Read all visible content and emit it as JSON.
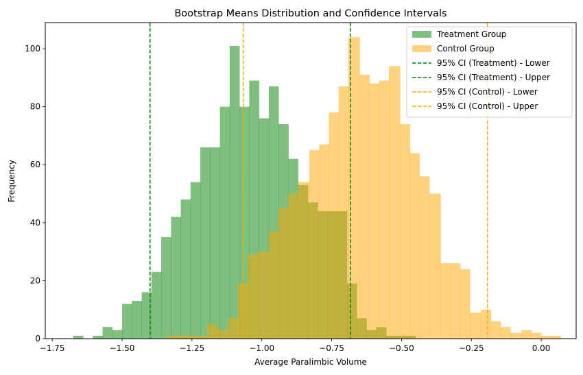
{
  "chart_data": {
    "type": "histogram",
    "title": "Bootstrap Means Distribution and Confidence Intervals",
    "xlabel": "Average Paralimbic Volume",
    "ylabel": "Frequency",
    "xlim": [
      -1.775,
      0.125
    ],
    "ylim": [
      0,
      109
    ],
    "xticks": [
      -1.75,
      -1.5,
      -1.25,
      -1.0,
      -0.75,
      -0.5,
      -0.25,
      0.0
    ],
    "xtick_labels": [
      "−1.75",
      "−1.50",
      "−1.25",
      "−1.00",
      "−0.75",
      "−0.50",
      "−0.25",
      "0.00"
    ],
    "yticks": [
      0,
      20,
      40,
      60,
      80,
      100
    ],
    "ytick_labels": [
      "0",
      "20",
      "40",
      "60",
      "80",
      "100"
    ],
    "grid": false,
    "legend_position": "top-right",
    "series": [
      {
        "name": "Treatment Group",
        "color": "#008000",
        "opacity": 0.5,
        "bins": [
          [
            -1.675,
            -1.64,
            1
          ],
          [
            -1.64,
            -1.605,
            0
          ],
          [
            -1.605,
            -1.57,
            1
          ],
          [
            -1.57,
            -1.535,
            4
          ],
          [
            -1.535,
            -1.5,
            3
          ],
          [
            -1.5,
            -1.465,
            12
          ],
          [
            -1.465,
            -1.43,
            13
          ],
          [
            -1.43,
            -1.395,
            16
          ],
          [
            -1.395,
            -1.36,
            23
          ],
          [
            -1.36,
            -1.325,
            35
          ],
          [
            -1.325,
            -1.29,
            42
          ],
          [
            -1.29,
            -1.255,
            48
          ],
          [
            -1.255,
            -1.22,
            54
          ],
          [
            -1.22,
            -1.185,
            66
          ],
          [
            -1.185,
            -1.15,
            66
          ],
          [
            -1.15,
            -1.115,
            80
          ],
          [
            -1.115,
            -1.08,
            101
          ],
          [
            -1.08,
            -1.045,
            80
          ],
          [
            -1.045,
            -1.01,
            89
          ],
          [
            -1.01,
            -0.975,
            76
          ],
          [
            -0.975,
            -0.94,
            87
          ],
          [
            -0.94,
            -0.905,
            74
          ],
          [
            -0.905,
            -0.87,
            62
          ],
          [
            -0.87,
            -0.835,
            53
          ],
          [
            -0.835,
            -0.8,
            47
          ],
          [
            -0.8,
            -0.765,
            44
          ],
          [
            -0.765,
            -0.73,
            44
          ],
          [
            -0.73,
            -0.695,
            44
          ],
          [
            -0.695,
            -0.66,
            19
          ],
          [
            -0.66,
            -0.625,
            7
          ],
          [
            -0.625,
            -0.59,
            3
          ],
          [
            -0.59,
            -0.555,
            4
          ],
          [
            -0.555,
            -0.52,
            1
          ],
          [
            -0.52,
            -0.485,
            1
          ],
          [
            -0.485,
            -0.45,
            1
          ]
        ]
      },
      {
        "name": "Control Group",
        "color": "#ffa500",
        "opacity": 0.5,
        "bins": [
          [
            -1.415,
            -1.375,
            0
          ],
          [
            -1.375,
            -1.34,
            0
          ],
          [
            -1.34,
            -1.305,
            1
          ],
          [
            -1.305,
            -1.265,
            1
          ],
          [
            -1.265,
            -1.23,
            1
          ],
          [
            -1.23,
            -1.195,
            1
          ],
          [
            -1.195,
            -1.16,
            5
          ],
          [
            -1.16,
            -1.12,
            3
          ],
          [
            -1.12,
            -1.085,
            7
          ],
          [
            -1.085,
            -1.05,
            19
          ],
          [
            -1.05,
            -1.015,
            29
          ],
          [
            -1.015,
            -0.975,
            30
          ],
          [
            -0.975,
            -0.94,
            37
          ],
          [
            -0.94,
            -0.905,
            45
          ],
          [
            -0.905,
            -0.87,
            50
          ],
          [
            -0.87,
            -0.83,
            54
          ],
          [
            -0.83,
            -0.795,
            65
          ],
          [
            -0.795,
            -0.76,
            67
          ],
          [
            -0.76,
            -0.725,
            78
          ],
          [
            -0.725,
            -0.69,
            87
          ],
          [
            -0.69,
            -0.65,
            104
          ],
          [
            -0.65,
            -0.615,
            91
          ],
          [
            -0.615,
            -0.58,
            88
          ],
          [
            -0.58,
            -0.545,
            89
          ],
          [
            -0.545,
            -0.505,
            94
          ],
          [
            -0.505,
            -0.47,
            74
          ],
          [
            -0.47,
            -0.435,
            64
          ],
          [
            -0.435,
            -0.4,
            56
          ],
          [
            -0.4,
            -0.36,
            50
          ],
          [
            -0.36,
            -0.325,
            26
          ],
          [
            -0.325,
            -0.29,
            26
          ],
          [
            -0.29,
            -0.255,
            24
          ],
          [
            -0.255,
            -0.215,
            9
          ],
          [
            -0.215,
            -0.18,
            10
          ],
          [
            -0.18,
            -0.145,
            6
          ],
          [
            -0.145,
            -0.11,
            4
          ],
          [
            -0.11,
            -0.07,
            2
          ],
          [
            -0.07,
            -0.035,
            3
          ],
          [
            -0.035,
            0.0,
            2
          ],
          [
            0.0,
            0.035,
            1
          ],
          [
            0.035,
            0.07,
            1
          ],
          [
            0.07,
            0.105,
            0
          ]
        ]
      }
    ],
    "vlines": [
      {
        "name": "95% CI (Treatment) - Lower",
        "x": -1.4,
        "color": "#008000",
        "style": "dashed"
      },
      {
        "name": "95% CI (Treatment) - Upper",
        "x": -0.683,
        "color": "#008000",
        "style": "dashed"
      },
      {
        "name": "95% CI (Control) - Lower",
        "x": -1.066,
        "color": "#ffa500",
        "style": "dashed"
      },
      {
        "name": "95% CI (Control) - Upper",
        "x": -0.192,
        "color": "#ffa500",
        "style": "dashed"
      }
    ]
  }
}
